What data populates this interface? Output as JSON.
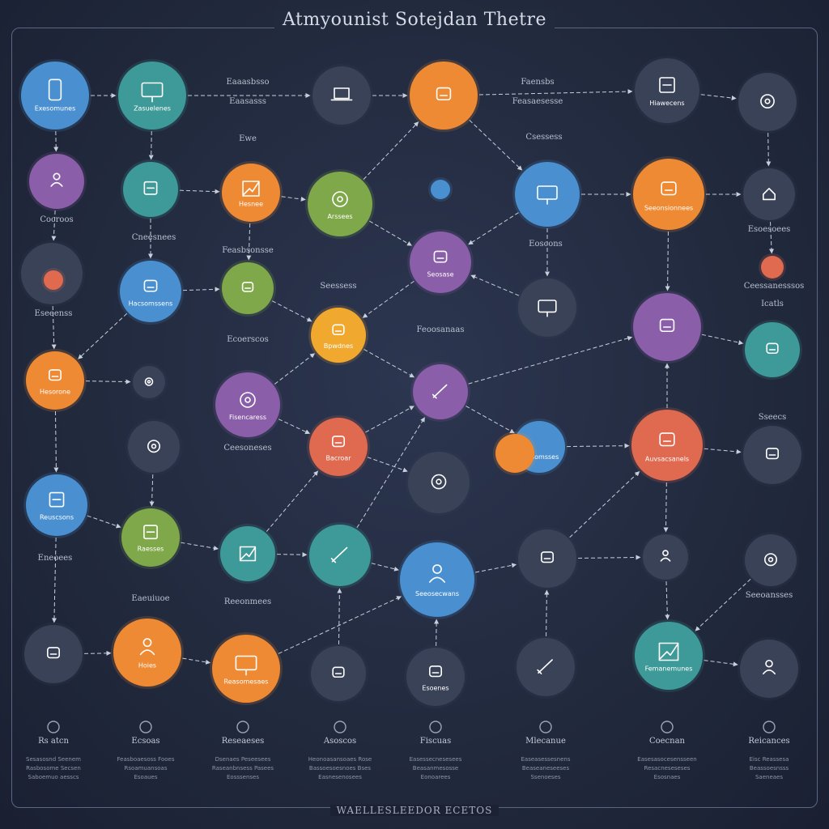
{
  "title": "Atmyounist Sotejdan Thetre",
  "footer": "WAELLESLEEDOR ECETOS",
  "colors": {
    "background": "#222a3e",
    "frame": "#5b6680",
    "edge": "#c8cfdc",
    "blue": "#4a90d0",
    "teal": "#3e9a98",
    "green": "#7fa84a",
    "orange": "#ef8a34",
    "purple": "#8a5ea8",
    "coral": "#e06a50",
    "dark": "#3a4258",
    "yellow": "#f0a92e"
  },
  "nodes": [
    {
      "id": "n1",
      "color": "blue",
      "icon": "phone-icon",
      "label": "Exesomunes"
    },
    {
      "id": "n2",
      "color": "teal",
      "icon": "monitor-icon",
      "label": "Zasuelenes"
    },
    {
      "id": "n3",
      "color": "dark",
      "icon": "laptop-icon",
      "label": ""
    },
    {
      "id": "n4",
      "color": "orange",
      "icon": "network-icon",
      "label": ""
    },
    {
      "id": "n5",
      "color": "dark",
      "icon": "document-icon",
      "label": "Hiawecens"
    },
    {
      "id": "n6",
      "color": "dark",
      "icon": "compass-icon",
      "label": ""
    },
    {
      "id": "n7",
      "color": "purple",
      "icon": "person-icon",
      "label": ""
    },
    {
      "id": "n8",
      "color": "teal",
      "icon": "tablet-icon",
      "label": ""
    },
    {
      "id": "n9",
      "color": "orange",
      "icon": "bar-chart-icon",
      "label": "Hesnee"
    },
    {
      "id": "n10",
      "color": "green",
      "icon": "target-icon",
      "label": "Arssees"
    },
    {
      "id": "n11",
      "color": "blue",
      "icon": "lock-icon",
      "label": ""
    },
    {
      "id": "n12",
      "color": "blue",
      "icon": "screen-icon",
      "label": ""
    },
    {
      "id": "n13",
      "color": "orange",
      "icon": "server-icon",
      "label": "Seeonsionnees"
    },
    {
      "id": "n14",
      "color": "dark",
      "icon": "house-icon",
      "label": ""
    },
    {
      "id": "n15",
      "color": "dark",
      "icon": "",
      "label": ""
    },
    {
      "id": "n16",
      "color": "coral",
      "icon": "dot-icon",
      "label": ""
    },
    {
      "id": "n17",
      "color": "purple",
      "icon": "box-icon",
      "label": "Seosase"
    },
    {
      "id": "n18",
      "color": "coral",
      "icon": "dot-icon",
      "label": ""
    },
    {
      "id": "n19",
      "color": "blue",
      "icon": "dome-icon",
      "label": "Hacsomssens"
    },
    {
      "id": "n20",
      "color": "green",
      "icon": "leaf-icon",
      "label": ""
    },
    {
      "id": "n21",
      "color": "dark",
      "icon": "display-icon",
      "label": ""
    },
    {
      "id": "n22",
      "color": "yellow",
      "icon": "rocket-icon",
      "label": "Bpwdnes"
    },
    {
      "id": "n23",
      "color": "purple",
      "icon": "flask-icon",
      "label": ""
    },
    {
      "id": "n24",
      "color": "purple",
      "icon": "hammer-icon",
      "label": ""
    },
    {
      "id": "n25",
      "color": "teal",
      "icon": "hat-icon",
      "label": ""
    },
    {
      "id": "n26",
      "color": "orange",
      "icon": "cup-icon",
      "label": "Hesorone"
    },
    {
      "id": "n27",
      "color": "dark",
      "icon": "globe-icon",
      "label": ""
    },
    {
      "id": "n28",
      "color": "purple",
      "icon": "gear-icon",
      "label": "Fisencaress"
    },
    {
      "id": "n29",
      "color": "coral",
      "icon": "glass-icon",
      "label": "Bacroar"
    },
    {
      "id": "n30",
      "color": "blue",
      "icon": "",
      "label": "Ressomsses"
    },
    {
      "id": "n31",
      "color": "orange",
      "icon": "",
      "label": ""
    },
    {
      "id": "n32",
      "color": "coral",
      "icon": "desk-icon",
      "label": "Auvsacsanels"
    },
    {
      "id": "n33",
      "color": "dark",
      "icon": "orbit-icon",
      "label": ""
    },
    {
      "id": "n34",
      "color": "dark",
      "icon": "planet-icon",
      "label": ""
    },
    {
      "id": "n35",
      "color": "blue",
      "icon": "briefcase-icon",
      "label": "Reuscsons"
    },
    {
      "id": "n36",
      "color": "dark",
      "icon": "ufo-icon",
      "label": ""
    },
    {
      "id": "n37",
      "color": "green",
      "icon": "credit-card-icon",
      "label": "Raesses"
    },
    {
      "id": "n38",
      "color": "teal",
      "icon": "chart-line-icon",
      "label": ""
    },
    {
      "id": "n39",
      "color": "teal",
      "icon": "pencil-icon",
      "label": ""
    },
    {
      "id": "n40",
      "color": "blue",
      "icon": "user-icon",
      "label": "Seeosecwans"
    },
    {
      "id": "n41",
      "color": "dark",
      "icon": "magnifier-icon",
      "label": ""
    },
    {
      "id": "n42",
      "color": "dark",
      "icon": "face-icon",
      "label": ""
    },
    {
      "id": "n43",
      "color": "dark",
      "icon": "eye-icon",
      "label": ""
    },
    {
      "id": "n44",
      "color": "dark",
      "icon": "workbench-icon",
      "label": ""
    },
    {
      "id": "n45",
      "color": "orange",
      "icon": "robot-icon",
      "label": "Hoies"
    },
    {
      "id": "n46",
      "color": "orange",
      "icon": "presentation-icon",
      "label": "Reasomesaes"
    },
    {
      "id": "n47",
      "color": "dark",
      "icon": "shoe-icon",
      "label": ""
    },
    {
      "id": "n48",
      "color": "dark",
      "icon": "backpack-icon",
      "label": "Esoenes"
    },
    {
      "id": "n49",
      "color": "dark",
      "icon": "tools-icon",
      "label": ""
    },
    {
      "id": "n50",
      "color": "teal",
      "icon": "chart-icon",
      "label": "Femanemunes"
    },
    {
      "id": "n51",
      "color": "dark",
      "icon": "robot-head-icon",
      "label": ""
    }
  ],
  "floating_labels": [
    {
      "id": "f1",
      "text": "Eaaasbsso"
    },
    {
      "id": "f2",
      "text": "Eaasasss"
    },
    {
      "id": "f3",
      "text": "Faensbs"
    },
    {
      "id": "f4",
      "text": "Feasaesesse"
    },
    {
      "id": "f5",
      "text": "Ewe"
    },
    {
      "id": "f6",
      "text": "Csessess"
    },
    {
      "id": "f7",
      "text": "Cocroos"
    },
    {
      "id": "f8",
      "text": "Cneesnees"
    },
    {
      "id": "f9",
      "text": "Feasbsonsse"
    },
    {
      "id": "f10",
      "text": "Esoesoees"
    },
    {
      "id": "f11",
      "text": "Eoscons"
    },
    {
      "id": "f12",
      "text": "Ceessanesssos"
    },
    {
      "id": "f13",
      "text": "Seessess"
    },
    {
      "id": "f14",
      "text": "Feoosanaas"
    },
    {
      "id": "f15",
      "text": "Icatls"
    },
    {
      "id": "f16",
      "text": "Eseeenss"
    },
    {
      "id": "f17",
      "text": "Ecoerscos"
    },
    {
      "id": "f18",
      "text": "Sseecs"
    },
    {
      "id": "f19",
      "text": "Ceesoneses"
    },
    {
      "id": "f20",
      "text": "Eneoees"
    },
    {
      "id": "f21",
      "text": "Eaeuiuoe"
    },
    {
      "id": "f22",
      "text": "Reeonmees"
    },
    {
      "id": "f23",
      "text": "Seeoansses"
    }
  ],
  "bottom_items": [
    {
      "label": "Rs atcn",
      "lines": [
        "Sesasosnd Seenem",
        "Rasbosome Secsen",
        "Saboemuo aesscs"
      ]
    },
    {
      "label": "Ecsoas",
      "lines": [
        "Feasboaesoss Fooes",
        "Rsoamuansoas",
        "Esoaues"
      ]
    },
    {
      "label": "Reseaeses",
      "lines": [
        "Dsenaes Peseesees",
        "Raseanbnsess Pasees",
        "Eosssenses"
      ]
    },
    {
      "label": "Asoscos",
      "lines": [
        "Heonoasansoaes Rose",
        "Bassoesoesnoes Bses",
        "Easnesenosees"
      ]
    },
    {
      "label": "Fiscuas",
      "lines": [
        "Easessecnesesees",
        "Beasanmesosse",
        "Eonoarees"
      ]
    },
    {
      "label": "Mlecanue",
      "lines": [
        "Easeasessesnens",
        "Beaseaneseeses",
        "Ssenoeses"
      ]
    },
    {
      "label": "Coecnan",
      "lines": [
        "Easesasocesensseen",
        "Resacneseseses",
        "Esosnaes"
      ]
    },
    {
      "label": "Reicances",
      "lines": [
        "Eisc Reassesa",
        "Beassoesnsss",
        "Saeneaes"
      ]
    }
  ]
}
